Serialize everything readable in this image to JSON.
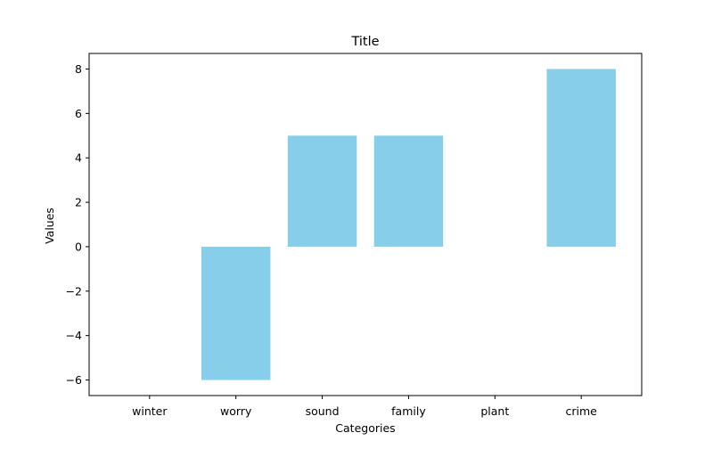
{
  "chart_data": {
    "type": "bar",
    "title": "Title",
    "xlabel": "Categories",
    "ylabel": "Values",
    "categories": [
      "winter",
      "worry",
      "sound",
      "family",
      "plant",
      "crime"
    ],
    "values": [
      0,
      -6,
      5,
      5,
      0,
      8
    ],
    "ylim": [
      -6.7,
      8.7
    ],
    "yticks": [
      -6,
      -4,
      -2,
      0,
      2,
      4,
      6,
      8
    ],
    "ytick_labels": [
      "−6",
      "−4",
      "−2",
      "0",
      "2",
      "4",
      "6",
      "8"
    ],
    "bar_color": "#87CEEB",
    "grid": false,
    "legend": "none"
  }
}
